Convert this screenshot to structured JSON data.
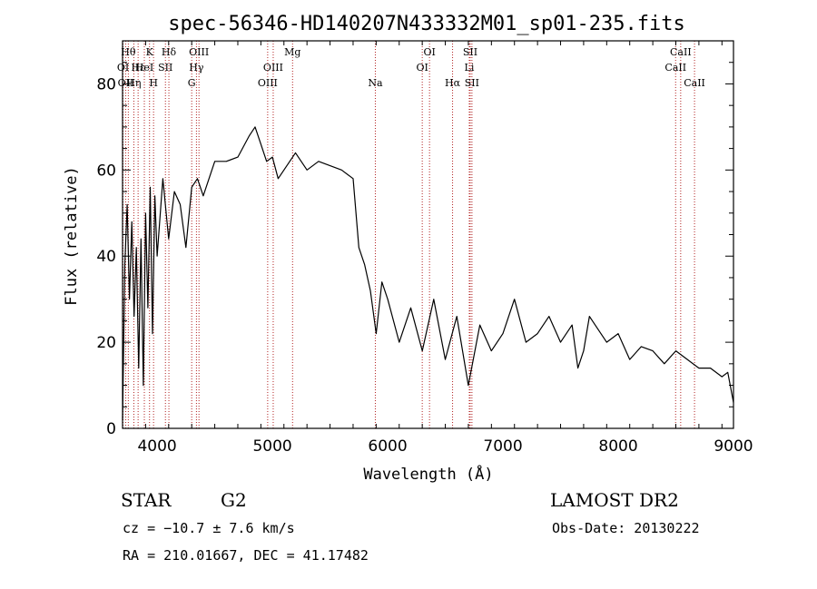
{
  "chart_data": {
    "type": "line",
    "title": "spec-56346-HD140207N433332M01_sp01-235.fits",
    "xlabel": "Wavelength (Å)",
    "ylabel": "Flux (relative)",
    "xlim": [
      3700,
      9000
    ],
    "ylim": [
      0,
      90
    ],
    "xticks": [
      4000,
      5000,
      6000,
      7000,
      8000,
      9000
    ],
    "yticks": [
      0,
      20,
      40,
      60,
      80
    ],
    "grid": false,
    "series": [
      {
        "color": "#000000",
        "x": [
          3700,
          3720,
          3740,
          3760,
          3780,
          3800,
          3820,
          3840,
          3860,
          3880,
          3900,
          3920,
          3940,
          3960,
          3980,
          4000,
          4050,
          4100,
          4150,
          4200,
          4250,
          4300,
          4350,
          4400,
          4500,
          4600,
          4700,
          4800,
          4850,
          4900,
          4950,
          5000,
          5050,
          5100,
          5200,
          5300,
          5400,
          5500,
          5600,
          5700,
          5750,
          5800,
          5850,
          5900,
          5950,
          6000,
          6100,
          6200,
          6300,
          6400,
          6500,
          6600,
          6700,
          6800,
          6900,
          7000,
          7100,
          7200,
          7300,
          7400,
          7500,
          7600,
          7650,
          7700,
          7750,
          7800,
          7900,
          8000,
          8100,
          8200,
          8300,
          8400,
          8500,
          8600,
          8700,
          8800,
          8900,
          8950,
          9000
        ],
        "y": [
          2,
          38,
          52,
          30,
          48,
          26,
          42,
          14,
          44,
          10,
          50,
          28,
          56,
          22,
          54,
          40,
          58,
          44,
          55,
          52,
          42,
          56,
          58,
          54,
          62,
          62,
          63,
          68,
          70,
          66,
          62,
          63,
          58,
          60,
          64,
          60,
          62,
          61,
          60,
          58,
          42,
          38,
          32,
          22,
          34,
          30,
          20,
          28,
          18,
          30,
          16,
          26,
          10,
          24,
          18,
          22,
          30,
          20,
          22,
          26,
          20,
          24,
          14,
          18,
          26,
          24,
          20,
          22,
          16,
          19,
          18,
          15,
          18,
          16,
          14,
          14,
          12,
          13,
          6
        ]
      }
    ],
    "annotations": [
      {
        "x": 3704,
        "label": "OI",
        "row": 2
      },
      {
        "x": 3727,
        "label": "OII",
        "row": 3
      },
      {
        "x": 3750,
        "label": "Hθ",
        "row": 1
      },
      {
        "x": 3798,
        "label": "Hη",
        "row": 3
      },
      {
        "x": 3835,
        "label": "Hε",
        "row": 2
      },
      {
        "x": 3889,
        "label": "HeI",
        "row": 2
      },
      {
        "x": 3934,
        "label": "K",
        "row": 1
      },
      {
        "x": 3969,
        "label": "H",
        "row": 3
      },
      {
        "x": 4072,
        "label": "SII",
        "row": 2
      },
      {
        "x": 4102,
        "label": "Hδ",
        "row": 1
      },
      {
        "x": 4300,
        "label": "G",
        "row": 3
      },
      {
        "x": 4341,
        "label": "Hγ",
        "row": 2
      },
      {
        "x": 4363,
        "label": "OIII",
        "row": 1
      },
      {
        "x": 4959,
        "label": "OIII",
        "row": 3
      },
      {
        "x": 5007,
        "label": "OIII",
        "row": 2
      },
      {
        "x": 5175,
        "label": "Mg",
        "row": 1
      },
      {
        "x": 5893,
        "label": "Na",
        "row": 3
      },
      {
        "x": 6300,
        "label": "OI",
        "row": 2
      },
      {
        "x": 6363,
        "label": "OI",
        "row": 1
      },
      {
        "x": 6563,
        "label": "Hα",
        "row": 3
      },
      {
        "x": 6708,
        "label": "Li",
        "row": 2
      },
      {
        "x": 6716,
        "label": "SII",
        "row": 1
      },
      {
        "x": 6731,
        "label": "SII",
        "row": 3
      },
      {
        "x": 8498,
        "label": "CaII",
        "row": 2
      },
      {
        "x": 8542,
        "label": "CaII",
        "row": 1
      },
      {
        "x": 8662,
        "label": "CaII",
        "row": 3
      }
    ]
  },
  "info": {
    "object_type": "STAR",
    "subclass": "G2",
    "survey": "LAMOST DR2",
    "cz": "cz = −10.7 ± 7.6 km/s",
    "obs_date": "Obs-Date: 20130222",
    "coords": "RA = 210.01667, DEC =  41.17482"
  }
}
